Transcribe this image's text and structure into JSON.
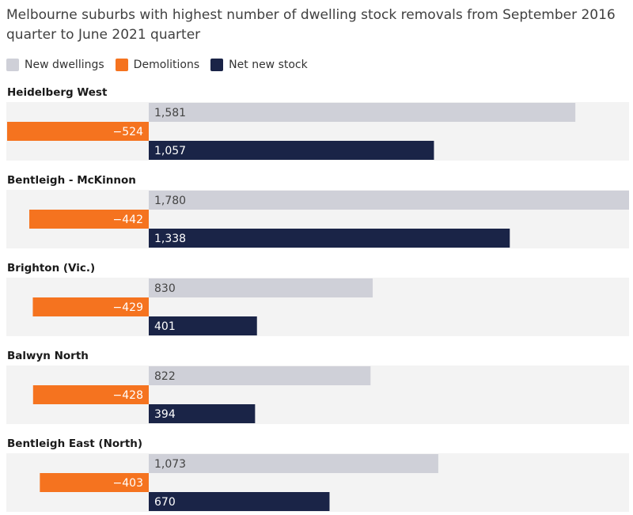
{
  "chart_data": {
    "type": "bar",
    "orientation": "horizontal",
    "title": "Melbourne suburbs with highest number of dwelling stock removals from September 2016 quarter to June 2021 quarter",
    "categories": [
      "Heidelberg West",
      "Bentleigh - McKinnon",
      "Brighton (Vic.)",
      "Balwyn North",
      "Bentleigh East (North)"
    ],
    "series": [
      {
        "name": "New dwellings",
        "color": "#cfd0d8",
        "text_color": "#444444",
        "values": [
          1581,
          1780,
          830,
          822,
          1073
        ],
        "labels": [
          "1,581",
          "1,780",
          "830",
          "822",
          "1,073"
        ]
      },
      {
        "name": "Demolitions",
        "color": "#f5731f",
        "text_color": "#ffffff",
        "values": [
          -524,
          -442,
          -429,
          -428,
          -403
        ],
        "labels": [
          "−524",
          "−442",
          "−429",
          "−428",
          "−403"
        ]
      },
      {
        "name": "Net new stock",
        "color": "#1a2447",
        "text_color": "#ffffff",
        "values": [
          1057,
          1338,
          401,
          394,
          670
        ],
        "labels": [
          "1,057",
          "1,338",
          "401",
          "394",
          "670"
        ]
      }
    ],
    "xlim": [
      -524,
      1780
    ],
    "grid": false,
    "legend_position": "top-left"
  }
}
